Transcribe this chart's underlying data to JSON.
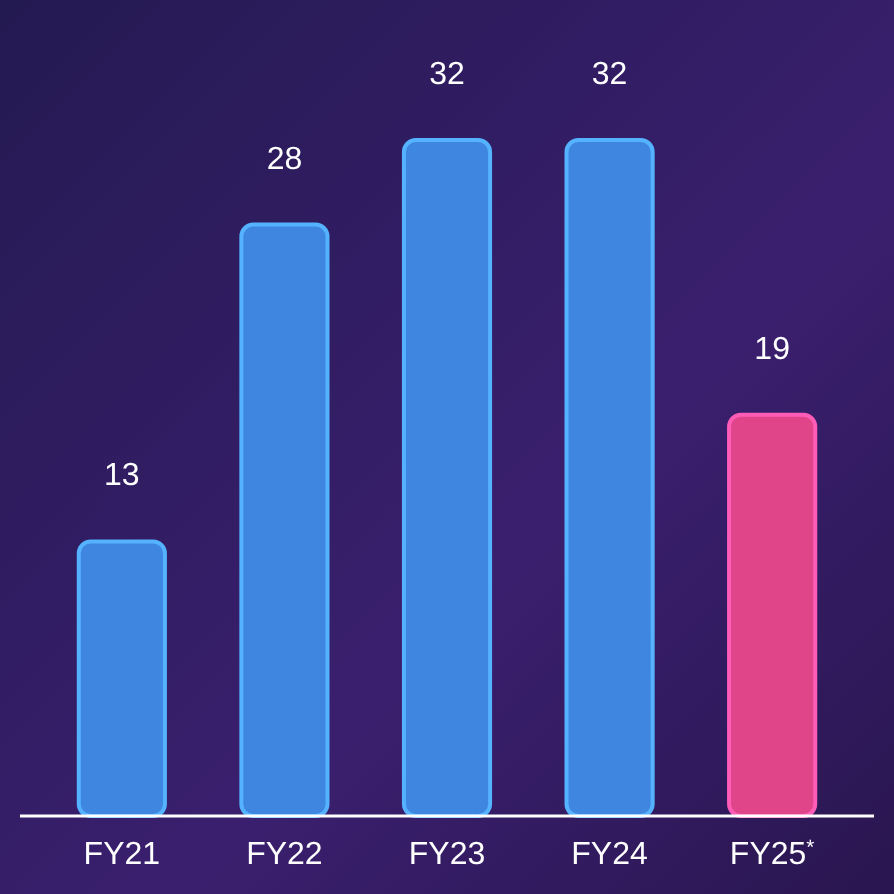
{
  "chart_data": {
    "type": "bar",
    "categories": [
      "FY21",
      "FY22",
      "FY23",
      "FY24",
      "FY25$^{*}$"
    ],
    "values": [
      13,
      28,
      32,
      32,
      19
    ],
    "colors": [
      "#3f86e0",
      "#3f86e0",
      "#3f86e0",
      "#3f86e0",
      "#e0458a"
    ],
    "data_labels": true
  }
}
